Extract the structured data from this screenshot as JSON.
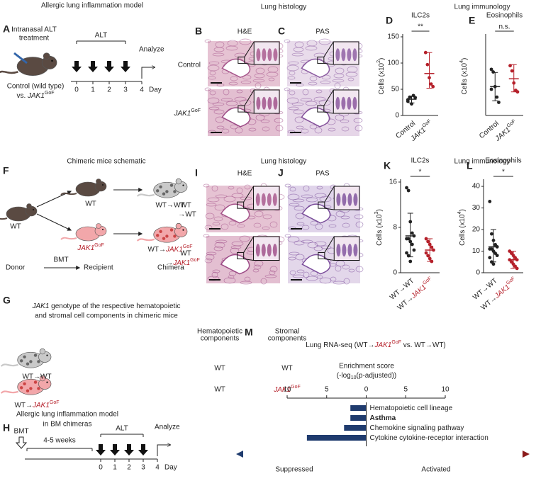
{
  "figure": {
    "A": {
      "letter": "A",
      "title": "Allergic lung inflammation model",
      "treatment": [
        "Intranasal ALT",
        "treatment"
      ],
      "alt": "ALT",
      "analyze": "Analyze",
      "days": [
        "0",
        "1",
        "2",
        "3",
        "4"
      ],
      "day": "Day",
      "mouse": [
        "Control (wild type)",
        [
          {
            "t": "vs. "
          },
          {
            "t": "JAK1",
            "i": true
          },
          {
            "t": "GoF",
            "sup": true
          }
        ]
      ]
    },
    "histology1": {
      "title": "Lung histology",
      "B": "B",
      "B_stain": "H&E",
      "C": "C",
      "C_stain": "PAS",
      "rows": [
        "Control",
        [
          {
            "t": "JAK1",
            "i": true
          },
          {
            "t": "GoF",
            "sup": true
          }
        ]
      ]
    },
    "immunology1": "Lung immunology",
    "F": {
      "letter": "F",
      "title": "Chimeric mice schematic",
      "donor_wt": "WT",
      "recipient_wt": "WT",
      "recipient_jak": [
        {
          "t": "JAK1",
          "i": true,
          "color": "#b5202a"
        },
        {
          "t": "GoF",
          "sup": true,
          "color": "#b5202a"
        }
      ],
      "chimera_wt": "WT→WT",
      "chimera_jak": [
        {
          "t": "WT→"
        },
        {
          "t": "JAK1",
          "i": true,
          "color": "#b5202a"
        },
        {
          "t": "GoF",
          "sup": true,
          "color": "#b5202a"
        }
      ],
      "donor": "Donor",
      "bmt": "BMT",
      "recipient": "Recipient",
      "chimera": "Chimera"
    },
    "histology2": {
      "title": "Lung histology",
      "I": "I",
      "I_stain": "H&E",
      "J": "J",
      "J_stain": "PAS",
      "rows": [
        [
          "WT",
          "→WT"
        ],
        [
          "WT",
          [
            {
              "t": "→"
            },
            {
              "t": "JAK1",
              "i": true,
              "color": "#b5202a"
            },
            {
              "t": "GoF",
              "sup": true,
              "color": "#b5202a"
            }
          ]
        ]
      ]
    },
    "immunology2": "Lung immunology",
    "G": {
      "letter": "G",
      "title": [
        [
          {
            "t": "JAK1",
            "i": true
          },
          {
            "t": " genotype of the respective hematopoietic"
          }
        ],
        "and stromal cell components in chimeric mice"
      ],
      "headers": [
        [
          "Hematopoietic",
          "components"
        ],
        [
          "Stromal",
          "components"
        ]
      ],
      "rows": [
        {
          "label": "WT→WT",
          "cells": [
            "WT",
            "WT"
          ]
        },
        {
          "label": [
            {
              "t": "WT→"
            },
            {
              "t": "JAK1",
              "i": true,
              "color": "#b5202a"
            },
            {
              "t": "GoF",
              "sup": true,
              "color": "#b5202a"
            }
          ],
          "cells": [
            "WT",
            [
              {
                "t": "JAK1",
                "i": true,
                "color": "#b5202a"
              },
              {
                "t": "GoF",
                "sup": true,
                "color": "#b5202a"
              }
            ]
          ]
        }
      ]
    },
    "H": {
      "letter": "H",
      "title": [
        "Allergic lung inflammation model",
        "in BM chimeras"
      ],
      "bmt": "BMT",
      "weeks": "4-5 weeks",
      "alt": "ALT",
      "analyze": "Analyze",
      "days": [
        "0",
        "1",
        "2",
        "3",
        "4"
      ],
      "day": "Day"
    }
  },
  "chart_data": [
    {
      "type": "dotplot",
      "panel": "D",
      "title": "ILC2s",
      "ylabel": [
        {
          "t": "Cells (x10"
        },
        {
          "t": "2",
          "sup": true
        },
        {
          "t": ")"
        }
      ],
      "categories": [
        "Control",
        [
          {
            "t": "JAK1",
            "i": true
          },
          {
            "t": "GoF",
            "sup": true
          }
        ]
      ],
      "colors": [
        "#222222",
        "#b5202a"
      ],
      "points": [
        [
          30,
          35,
          22,
          38,
          34,
          27
        ],
        [
          120,
          97,
          72,
          60,
          55
        ]
      ],
      "mean": [
        31,
        80
      ],
      "low": [
        24,
        52
      ],
      "high": [
        37,
        120
      ],
      "ylim": [
        0,
        150
      ],
      "yticks": [
        0,
        50,
        100,
        150
      ],
      "significance": "**"
    },
    {
      "type": "dotplot",
      "panel": "E",
      "title": "Eosinophils",
      "ylabel": [
        {
          "t": "Cells (x10"
        },
        {
          "t": "4",
          "sup": true
        },
        {
          "t": ")"
        }
      ],
      "categories": [
        "Control",
        [
          {
            "t": "JAK1",
            "i": true
          },
          {
            "t": "GoF",
            "sup": true
          }
        ]
      ],
      "colors": [
        "#222222",
        "#b5202a"
      ],
      "points": [
        [
          88,
          83,
          55,
          35,
          25,
          50
        ],
        [
          95,
          85,
          62,
          48,
          45
        ]
      ],
      "mean": [
        55,
        70
      ],
      "low": [
        28,
        45
      ],
      "high": [
        82,
        97
      ],
      "ylim": [
        0,
        150
      ],
      "significance": "n.s."
    },
    {
      "type": "dotplot",
      "panel": "K",
      "title": "ILC2s",
      "ylabel": [
        {
          "t": "Cells (x10"
        },
        {
          "t": "3",
          "sup": true
        },
        {
          "t": ")"
        }
      ],
      "categories": [
        "WT→WT",
        [
          {
            "t": "WT→"
          },
          {
            "t": "JAK1",
            "i": true,
            "color": "#b5202a"
          },
          {
            "t": "GoF",
            "sup": true,
            "color": "#b5202a"
          }
        ]
      ],
      "colors": [
        "#222222",
        "#b5202a"
      ],
      "points": [
        [
          15,
          14.5,
          9,
          7,
          6.5,
          6,
          6,
          5.5,
          5,
          4,
          3.5,
          3,
          2
        ],
        [
          6,
          5.5,
          5,
          4.5,
          4,
          3.5,
          3,
          2.5,
          2
        ]
      ],
      "mean": [
        6.5,
        4
      ],
      "low": [
        2.8,
        2
      ],
      "high": [
        10.5,
        6
      ],
      "ylim": [
        0,
        16
      ],
      "yticks": [
        0,
        8,
        16
      ],
      "significance": "*"
    },
    {
      "type": "dotplot",
      "panel": "L",
      "title": "Eosinophils",
      "ylabel": [
        {
          "t": "Cells (x10"
        },
        {
          "t": "4",
          "sup": true
        },
        {
          "t": ")"
        }
      ],
      "categories": [
        "WT→WT",
        [
          {
            "t": "WT→"
          },
          {
            "t": "JAK1",
            "i": true,
            "color": "#b5202a"
          },
          {
            "t": "GoF",
            "sup": true,
            "color": "#b5202a"
          }
        ]
      ],
      "colors": [
        "#222222",
        "#b5202a"
      ],
      "points": [
        [
          33,
          18,
          15,
          13,
          12,
          11,
          11,
          10,
          9,
          8,
          7,
          5,
          4
        ],
        [
          10,
          9,
          8,
          7,
          6,
          6,
          5,
          4,
          3,
          2
        ]
      ],
      "mean": [
        12,
        6
      ],
      "low": [
        5,
        2
      ],
      "high": [
        20,
        10
      ],
      "ylim": [
        0,
        42
      ],
      "yticks": [
        0,
        10,
        20,
        30,
        40
      ],
      "significance": "*"
    },
    {
      "type": "hbar",
      "panel": "M",
      "title": [
        {
          "t": "Lung RNA-seq (WT→"
        },
        {
          "t": "JAK1",
          "i": true,
          "color": "#b5202a"
        },
        {
          "t": "GoF",
          "sup": true,
          "color": "#b5202a"
        },
        {
          "t": " vs. WT→WT)"
        }
      ],
      "xlabel": [
        "Enrichment score",
        [
          {
            "t": "(-log"
          },
          {
            "t": "10",
            "sub": true
          },
          {
            "t": "(p-adjusted))"
          }
        ]
      ],
      "categories": [
        "Hematopoietic cell lineage",
        "Asthma",
        "Chemokine signaling pathway",
        "Cytokine cytokine-receptor interaction"
      ],
      "bold": [
        false,
        true,
        false,
        false
      ],
      "values": [
        -2,
        -2,
        -2.8,
        -7.5
      ],
      "color": "#1f3b6e",
      "xlim": [
        -10,
        10
      ],
      "xticks": [
        {
          "value": -10,
          "label": "10"
        },
        {
          "value": -5,
          "label": "5"
        },
        0,
        5,
        10
      ],
      "directions": [
        "Suppressed",
        "Activated"
      ]
    }
  ]
}
